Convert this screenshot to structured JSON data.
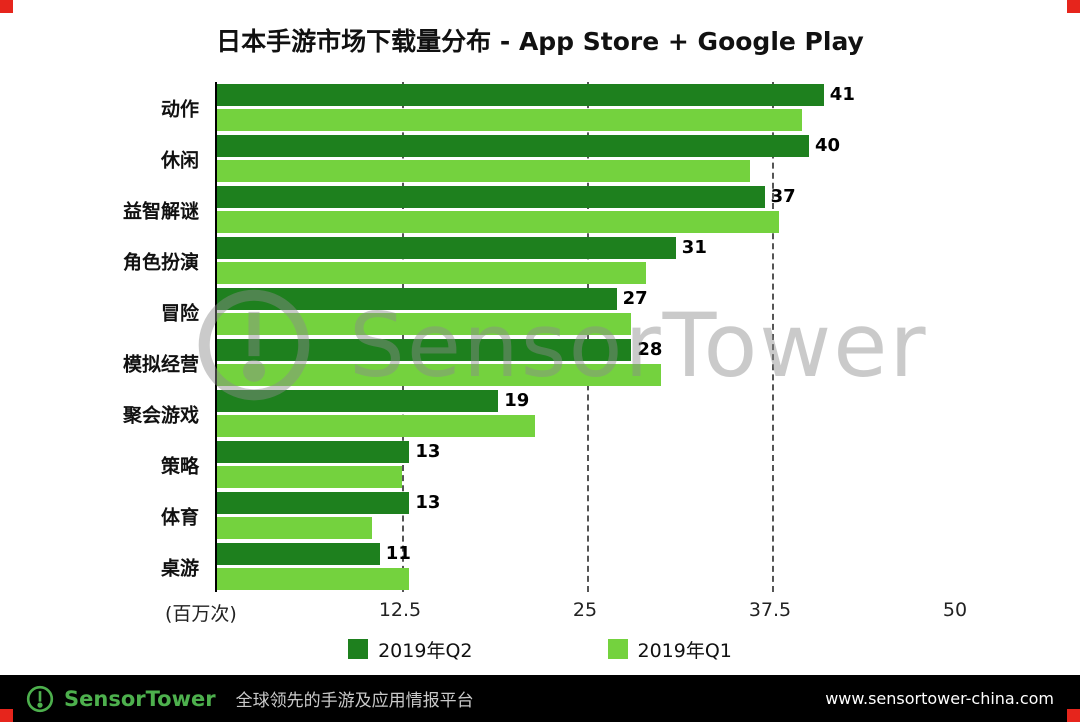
{
  "page": {
    "title": "日本手游市场下载量分布 - App Store + Google Play"
  },
  "chart_data": {
    "type": "bar",
    "orientation": "horizontal",
    "title": "日本手游市场下载量分布 - App Store + Google Play",
    "unit_label": "(百万次)",
    "categories": [
      "动作",
      "休闲",
      "益智解谜",
      "角色扮演",
      "冒险",
      "模拟经营",
      "聚会游戏",
      "策略",
      "体育",
      "桌游"
    ],
    "series": [
      {
        "name": "2019年Q2",
        "color": "#1E801E",
        "show_labels": true,
        "values": [
          41,
          40,
          37,
          31,
          27,
          28,
          19,
          13,
          13,
          11
        ]
      },
      {
        "name": "2019年Q1",
        "color": "#74D23E",
        "show_labels": false,
        "values": [
          39.5,
          36,
          38,
          29,
          28,
          30,
          21.5,
          12.5,
          10.5,
          13
        ]
      }
    ],
    "xlim": [
      0,
      50
    ],
    "xticks": [
      12.5,
      25,
      37.5,
      50
    ],
    "gridlines": [
      12.5,
      25,
      37.5
    ],
    "legend_position": "bottom"
  },
  "watermark": {
    "text": "SensorTower"
  },
  "footer": {
    "brand": "SensorTower",
    "tagline": "全球领先的手游及应用情报平台",
    "url": "www.sensortower-china.com"
  },
  "colors": {
    "q2_dark_green": "#1E801E",
    "q1_light_green": "#74D23E",
    "corner_red": "#e6251c",
    "footer_bg": "#000000",
    "brand_green": "#4db04d"
  }
}
